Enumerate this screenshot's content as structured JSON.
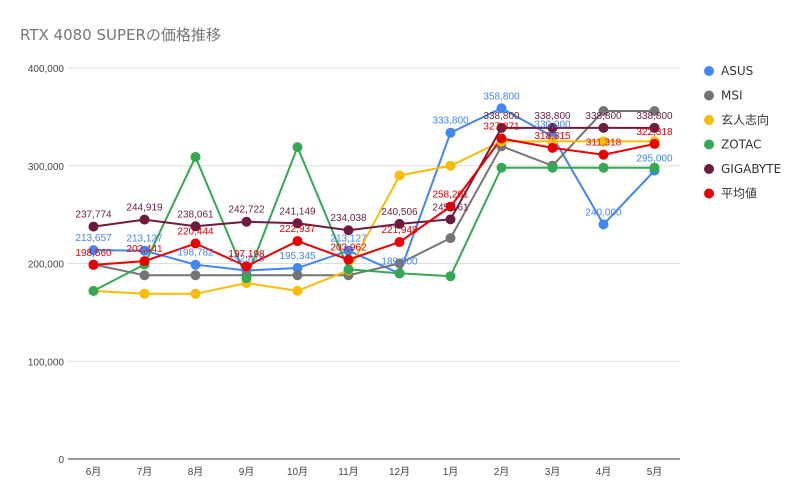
{
  "chart_data": {
    "type": "line",
    "title": "RTX 4080 SUPERの価格推移",
    "xlabel": "",
    "ylabel": "",
    "categories": [
      "6月",
      "7月",
      "8月",
      "9月",
      "10月",
      "11月",
      "12月",
      "1月",
      "2月",
      "3月",
      "4月",
      "5月"
    ],
    "ylim": [
      0,
      400000
    ],
    "yticks": [
      0,
      100000,
      200000,
      300000,
      400000
    ],
    "ytick_labels": [
      "0",
      "100,000",
      "200,000",
      "300,000",
      "400,000"
    ],
    "grid": true,
    "legend": "right",
    "series": [
      {
        "name": "ASUS",
        "color": "#4285f4",
        "values": [
          213657,
          213127,
          198782,
          192875,
          195345,
          213127,
          189800,
          333800,
          358800,
          330000,
          240000,
          295000
        ],
        "labels": [
          "213,657",
          "213,127",
          "198,782",
          "192,875",
          "195,345",
          "213,127",
          "189,800",
          "333,800",
          "358,800",
          "330,000",
          "240,000",
          "295,000"
        ]
      },
      {
        "name": "MSI",
        "color": "#757575",
        "values": [
          199000,
          188000,
          188000,
          188000,
          188000,
          188000,
          200000,
          226000,
          320000,
          300000,
          356000,
          356000
        ],
        "labels": []
      },
      {
        "name": "玄人志向",
        "color": "#fbbc04",
        "values": [
          172000,
          169000,
          169000,
          180000,
          172000,
          193000,
          290000,
          300000,
          325000,
          325000,
          325000,
          325000
        ],
        "labels": []
      },
      {
        "name": "ZOTAC",
        "color": "#34a853",
        "values": [
          172000,
          199000,
          309000,
          185000,
          319000,
          194000,
          190000,
          187000,
          298000,
          298000,
          298000,
          298000
        ],
        "labels": []
      },
      {
        "name": "GIGABYTE",
        "color": "#6d1b3f",
        "values": [
          237774,
          244919,
          238061,
          242722,
          241149,
          234038,
          240506,
          245161,
          338800,
          338800,
          338800,
          338800
        ],
        "labels": [
          "237,774",
          "244,919",
          "238,061",
          "242,722",
          "241,149",
          "234,038",
          "240,506",
          "245,161",
          "338,800",
          "338,800",
          "338,800",
          "338,800"
        ]
      },
      {
        "name": "平均値",
        "color": "#ea0000",
        "values": [
          198560,
          202441,
          220444,
          197198,
          222937,
          203962,
          221948,
          258201,
          327871,
          318315,
          311318,
          322318
        ],
        "labels": [
          "198,560",
          "202,441",
          "220,444",
          "197,198",
          "222,937",
          "203,962",
          "221,948",
          "258,201",
          "327,871",
          "318,315",
          "311,318",
          "322,318"
        ]
      }
    ]
  }
}
